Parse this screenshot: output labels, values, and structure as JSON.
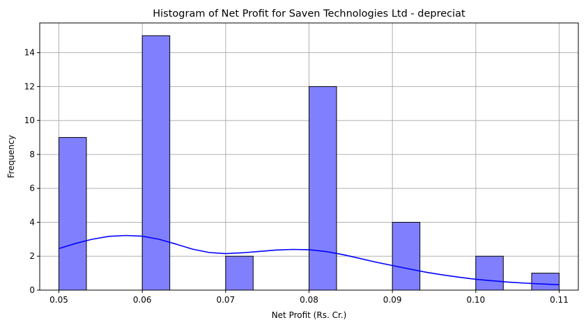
{
  "chart_data": {
    "type": "bar",
    "title": "Histogram of Net Profit for Saven Technologies Ltd - depreciat",
    "xlabel": "Net Profit (Rs. Cr.)",
    "ylabel": "Frequency",
    "xlim": [
      0.0477,
      0.1123
    ],
    "ylim": [
      0,
      15.75
    ],
    "xticks": [
      "0.05",
      "0.06",
      "0.07",
      "0.08",
      "0.09",
      "0.10",
      "0.11"
    ],
    "xtick_values": [
      0.05,
      0.06,
      0.07,
      0.08,
      0.09,
      0.1,
      0.11
    ],
    "yticks": [
      "0",
      "2",
      "4",
      "6",
      "8",
      "10",
      "12",
      "14"
    ],
    "ytick_values": [
      0,
      2,
      4,
      6,
      8,
      10,
      12,
      14
    ],
    "grid": true,
    "bar_color": "#8080ff",
    "bar_edge_color": "#000000",
    "kde_color": "#0000ff",
    "bins": [
      {
        "x0": 0.05,
        "x1": 0.0533,
        "count": 9
      },
      {
        "x0": 0.0533,
        "x1": 0.0567,
        "count": 0
      },
      {
        "x0": 0.0567,
        "x1": 0.06,
        "count": 0
      },
      {
        "x0": 0.06,
        "x1": 0.0633,
        "count": 15
      },
      {
        "x0": 0.0633,
        "x1": 0.0667,
        "count": 0
      },
      {
        "x0": 0.0667,
        "x1": 0.07,
        "count": 0
      },
      {
        "x0": 0.07,
        "x1": 0.0733,
        "count": 2
      },
      {
        "x0": 0.0733,
        "x1": 0.0767,
        "count": 0
      },
      {
        "x0": 0.0767,
        "x1": 0.08,
        "count": 0
      },
      {
        "x0": 0.08,
        "x1": 0.0833,
        "count": 12
      },
      {
        "x0": 0.0833,
        "x1": 0.0867,
        "count": 0
      },
      {
        "x0": 0.0867,
        "x1": 0.09,
        "count": 0
      },
      {
        "x0": 0.09,
        "x1": 0.0933,
        "count": 4
      },
      {
        "x0": 0.0933,
        "x1": 0.0967,
        "count": 0
      },
      {
        "x0": 0.0967,
        "x1": 0.1,
        "count": 0
      },
      {
        "x0": 0.1,
        "x1": 0.1033,
        "count": 2
      },
      {
        "x0": 0.1033,
        "x1": 0.1067,
        "count": 0
      },
      {
        "x0": 0.1067,
        "x1": 0.11,
        "count": 1
      }
    ],
    "kde": {
      "x": [
        0.05,
        0.052,
        0.054,
        0.056,
        0.058,
        0.06,
        0.062,
        0.064,
        0.066,
        0.068,
        0.07,
        0.072,
        0.074,
        0.076,
        0.078,
        0.08,
        0.082,
        0.084,
        0.086,
        0.088,
        0.09,
        0.092,
        0.094,
        0.096,
        0.098,
        0.1,
        0.102,
        0.104,
        0.106,
        0.108,
        0.11
      ],
      "y": [
        2.45,
        2.75,
        3.0,
        3.17,
        3.22,
        3.18,
        3.0,
        2.72,
        2.42,
        2.22,
        2.15,
        2.2,
        2.28,
        2.36,
        2.4,
        2.38,
        2.28,
        2.1,
        1.88,
        1.65,
        1.45,
        1.25,
        1.06,
        0.9,
        0.76,
        0.64,
        0.55,
        0.47,
        0.41,
        0.36,
        0.32
      ]
    }
  }
}
